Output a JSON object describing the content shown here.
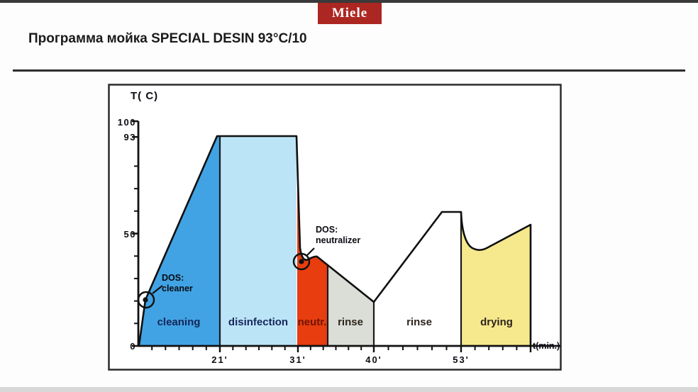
{
  "header": {
    "logo": "Miele",
    "title": "Программа мойка SPECIAL DESIN 93°C/10"
  },
  "chart_data": {
    "type": "area",
    "title": "Программа мойка SPECIAL DESIN 93°C/10",
    "xlabel": "t(min.)",
    "ylabel": "T( C)",
    "ylim": [
      0,
      100
    ],
    "grid": false,
    "y_tick_labels": [
      "100",
      "93",
      "50",
      "0"
    ],
    "x_tick_labels": [
      "21'",
      "31'",
      "40'",
      "53'"
    ],
    "phases": [
      {
        "label": "cleaning",
        "start_min": 0,
        "end_min": 21,
        "color": "#41a3e3",
        "temp_profile": "ramp 0 to 93 C"
      },
      {
        "label": "disinfection",
        "start_min": 21,
        "end_min": 31,
        "color": "#bce4f7",
        "temp_profile": "hold 93 C"
      },
      {
        "label": "neutr.",
        "start_min": 31,
        "end_min": 34,
        "color": "#e83d0f",
        "temp_profile": "drop 93 to 40 C"
      },
      {
        "label": "rinse",
        "start_min": 34,
        "end_min": 40,
        "color": "#dbded7",
        "temp_profile": "cool 40 to 20 C"
      },
      {
        "label": "rinse",
        "start_min": 40,
        "end_min": 53,
        "color": "#ffffff",
        "temp_profile": "heat 20 to 60 C, hold"
      },
      {
        "label": "drying",
        "start_min": 53,
        "end_min": 63,
        "color": "#f6e98d",
        "temp_profile": "dip to 44 C then rise to 54 C"
      }
    ],
    "series": [
      {
        "name": "temperature",
        "t_min": [
          0,
          4,
          21,
          31,
          31.5,
          33,
          34,
          40,
          51,
          53,
          55,
          63
        ],
        "temp_c": [
          0,
          21,
          93,
          93,
          38,
          40,
          39,
          20,
          60,
          60,
          44,
          54
        ]
      }
    ],
    "annotations": [
      {
        "label": "DOS:",
        "sublabel": "cleaner",
        "at_t_min": 4,
        "at_temp_c": 21
      },
      {
        "label": "DOS:",
        "sublabel": "neutralizer",
        "at_t_min": 31.5,
        "at_temp_c": 38
      }
    ]
  }
}
